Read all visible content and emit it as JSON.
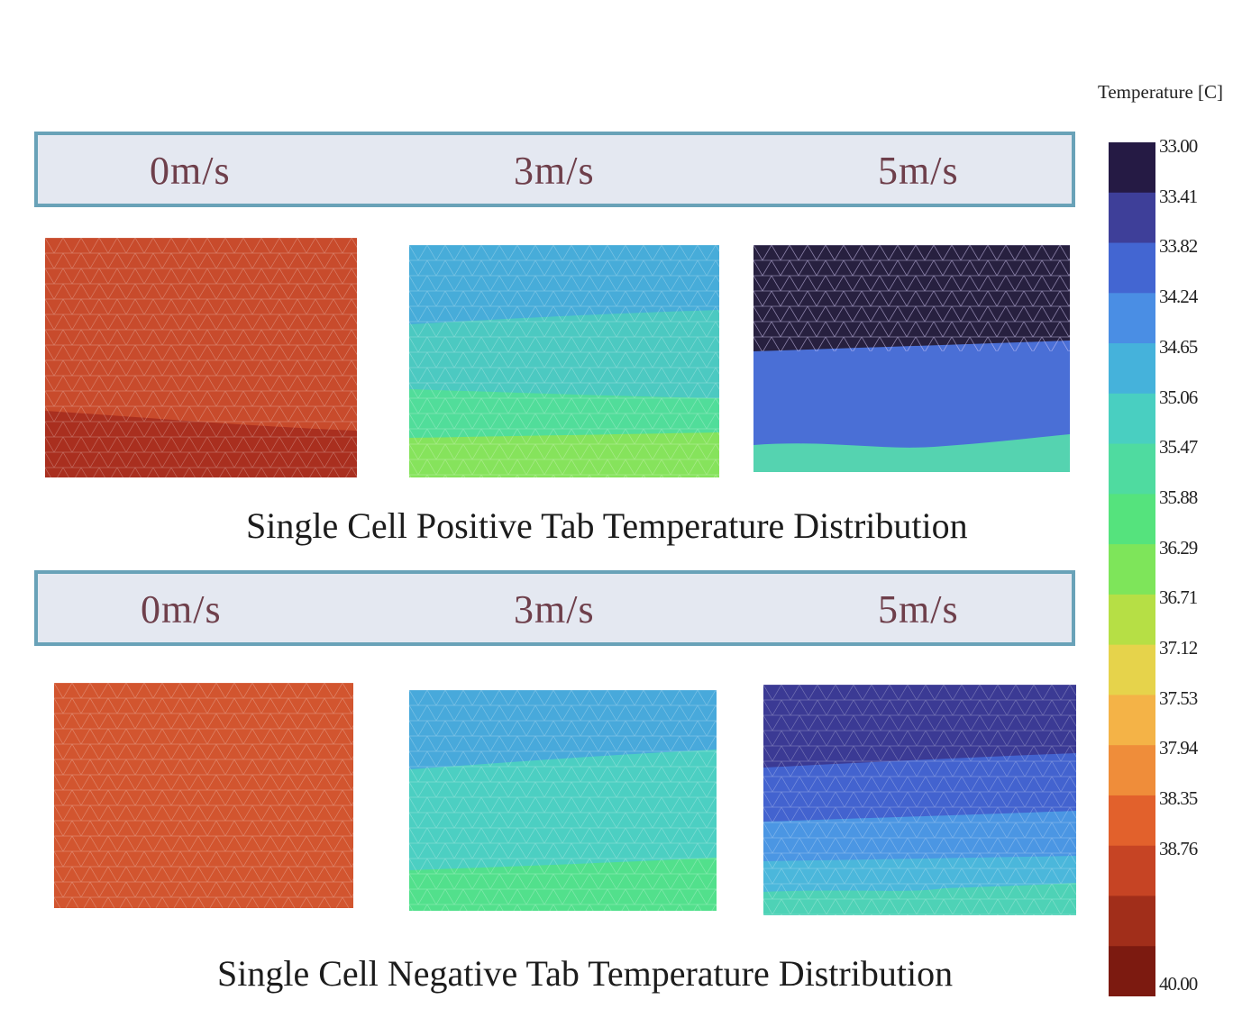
{
  "top_row": {
    "speeds": [
      "0m/s",
      "3m/s",
      "5m/s"
    ],
    "caption": "Single Cell Positive Tab Temperature Distribution"
  },
  "bottom_row": {
    "speeds": [
      "0m/s",
      "3m/s",
      "5m/s"
    ],
    "caption": "Single Cell Negative Tab Temperature Distribution"
  },
  "colorbar": {
    "title": "Temperature [C]",
    "ticks": [
      "33.00",
      "33.41",
      "33.82",
      "34.24",
      "34.65",
      "35.06",
      "35.47",
      "35.88",
      "36.29",
      "36.71",
      "37.12",
      "37.53",
      "37.94",
      "38.35",
      "38.76",
      "40.00"
    ],
    "colors": [
      "#251a44",
      "#3e3f99",
      "#4366d2",
      "#4a8ee4",
      "#45b2db",
      "#49cfc1",
      "#4fdba0",
      "#55e37d",
      "#7ee55a",
      "#b6df45",
      "#e6d34b",
      "#f4b347",
      "#ef8d3a",
      "#e2612c",
      "#c64424",
      "#a12e1a",
      "#7c1a10"
    ]
  },
  "panels": {
    "pos_0": {
      "bands": [
        "#c84b2c",
        "#a92f1f"
      ]
    },
    "pos_3": {
      "bands": [
        "#47acd9",
        "#4cc9c1",
        "#51dd9a",
        "#86e35c"
      ]
    },
    "pos_5": {
      "bands": [
        "#27203f",
        "#4a6fd6",
        "#55d3b0"
      ]
    },
    "neg_0": {
      "bands": [
        "#d2552f"
      ]
    },
    "neg_3": {
      "bands": [
        "#48a9db",
        "#4ccfc2",
        "#52e08c"
      ]
    },
    "neg_5": {
      "bands": [
        "#3b3a94",
        "#4363cf",
        "#4b96e3",
        "#4bb7db",
        "#4ed2b6"
      ]
    }
  }
}
